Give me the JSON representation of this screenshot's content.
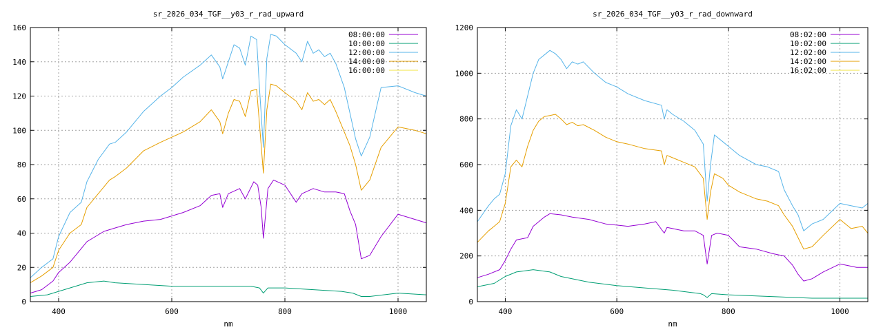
{
  "chart_data": [
    {
      "type": "line",
      "title": "sr_2026_034_TGF__y03_r_rad_upward",
      "xlabel": "nm",
      "ylabel": "",
      "xlim": [
        350,
        1050
      ],
      "ylim": [
        0,
        160
      ],
      "xticks": [
        400,
        600,
        800,
        1000
      ],
      "yticks": [
        0,
        20,
        40,
        60,
        80,
        100,
        120,
        140,
        160
      ],
      "grid": true,
      "legend_position": "top-right",
      "series": [
        {
          "name": "08:00:00",
          "color": "#9400d3",
          "x": [
            350,
            370,
            390,
            400,
            420,
            450,
            480,
            500,
            520,
            550,
            580,
            600,
            620,
            650,
            670,
            685,
            690,
            700,
            720,
            730,
            745,
            752,
            758,
            762,
            770,
            780,
            800,
            820,
            830,
            850,
            870,
            890,
            905,
            915,
            925,
            935,
            950,
            970,
            1000,
            1030,
            1050
          ],
          "y": [
            5,
            7,
            12,
            17,
            23,
            35,
            41,
            43,
            45,
            47,
            48,
            50,
            52,
            56,
            62,
            63,
            55,
            63,
            66,
            60,
            70,
            68,
            55,
            37,
            66,
            71,
            68,
            58,
            63,
            66,
            64,
            64,
            63,
            53,
            45,
            25,
            27,
            38,
            51,
            48,
            46
          ]
        },
        {
          "name": "10:00:00",
          "color": "#009e73",
          "x": [
            350,
            380,
            400,
            420,
            450,
            480,
            500,
            550,
            600,
            650,
            700,
            740,
            755,
            762,
            770,
            800,
            850,
            900,
            920,
            935,
            950,
            1000,
            1050
          ],
          "y": [
            3,
            4,
            6,
            8,
            11,
            12,
            11,
            10,
            9,
            9,
            9,
            9,
            8,
            5,
            8,
            8,
            7,
            6,
            5,
            3,
            3,
            5,
            4
          ]
        },
        {
          "name": "12:00:00",
          "color": "#56b4e9",
          "x": [
            350,
            370,
            390,
            400,
            420,
            440,
            450,
            470,
            490,
            500,
            520,
            550,
            580,
            600,
            620,
            650,
            670,
            685,
            690,
            700,
            710,
            720,
            730,
            740,
            750,
            755,
            762,
            768,
            775,
            785,
            800,
            820,
            830,
            840,
            850,
            860,
            870,
            880,
            890,
            905,
            915,
            925,
            935,
            950,
            970,
            1000,
            1030,
            1050
          ],
          "y": [
            14,
            20,
            25,
            38,
            52,
            58,
            70,
            83,
            92,
            93,
            99,
            111,
            120,
            125,
            131,
            138,
            144,
            137,
            130,
            140,
            150,
            148,
            138,
            155,
            153,
            125,
            90,
            142,
            156,
            155,
            150,
            145,
            140,
            152,
            145,
            147,
            143,
            145,
            139,
            125,
            110,
            95,
            85,
            96,
            125,
            126,
            122,
            120
          ]
        },
        {
          "name": "14:00:00",
          "color": "#e69f00",
          "x": [
            350,
            370,
            390,
            400,
            420,
            440,
            450,
            470,
            490,
            500,
            520,
            550,
            580,
            600,
            620,
            650,
            670,
            685,
            690,
            700,
            710,
            720,
            730,
            740,
            750,
            755,
            762,
            768,
            775,
            785,
            800,
            820,
            830,
            840,
            850,
            860,
            870,
            880,
            890,
            905,
            915,
            925,
            935,
            950,
            970,
            1000,
            1030,
            1050
          ],
          "y": [
            11,
            15,
            20,
            30,
            40,
            45,
            55,
            63,
            71,
            73,
            78,
            88,
            93,
            96,
            99,
            105,
            112,
            105,
            98,
            110,
            118,
            117,
            108,
            123,
            124,
            104,
            75,
            112,
            127,
            126,
            122,
            117,
            112,
            122,
            117,
            118,
            115,
            118,
            111,
            99,
            91,
            80,
            65,
            71,
            90,
            102,
            100,
            98
          ]
        },
        {
          "name": "16:00:00",
          "color": "#f0e442",
          "x": [
            350,
            400,
            450,
            500,
            550,
            600,
            650,
            700,
            750,
            800,
            850,
            900,
            950,
            1000,
            1050
          ],
          "y": [
            0,
            0,
            0,
            0,
            0,
            0,
            0,
            0,
            0,
            0,
            0,
            0,
            0,
            0,
            0
          ]
        }
      ]
    },
    {
      "type": "line",
      "title": "sr_2026_034_TGF__y03_r_rad_downward",
      "xlabel": "nm",
      "ylabel": "",
      "xlim": [
        350,
        1050
      ],
      "ylim": [
        0,
        1200
      ],
      "xticks": [
        400,
        600,
        800,
        1000
      ],
      "yticks": [
        0,
        200,
        400,
        600,
        800,
        1000,
        1200
      ],
      "grid": true,
      "legend_position": "top-right",
      "series": [
        {
          "name": "08:02:00",
          "color": "#9400d3",
          "x": [
            350,
            370,
            390,
            400,
            410,
            420,
            440,
            450,
            470,
            480,
            500,
            520,
            550,
            580,
            600,
            620,
            650,
            670,
            685,
            690,
            700,
            720,
            740,
            755,
            762,
            770,
            780,
            800,
            820,
            850,
            880,
            900,
            915,
            925,
            935,
            950,
            970,
            1000,
            1030,
            1050
          ],
          "y": [
            105,
            120,
            140,
            180,
            230,
            270,
            280,
            330,
            370,
            385,
            380,
            370,
            360,
            340,
            335,
            330,
            340,
            350,
            300,
            325,
            320,
            310,
            310,
            290,
            165,
            290,
            300,
            290,
            240,
            230,
            210,
            200,
            160,
            120,
            90,
            100,
            130,
            165,
            150,
            150
          ]
        },
        {
          "name": "10:02:00",
          "color": "#009e73",
          "x": [
            350,
            380,
            400,
            420,
            450,
            480,
            500,
            550,
            600,
            650,
            700,
            750,
            755,
            762,
            770,
            800,
            850,
            900,
            950,
            1000,
            1050
          ],
          "y": [
            65,
            80,
            110,
            130,
            140,
            130,
            110,
            85,
            70,
            60,
            50,
            35,
            30,
            18,
            35,
            30,
            25,
            20,
            15,
            15,
            15
          ]
        },
        {
          "name": "12:02:00",
          "color": "#56b4e9",
          "x": [
            350,
            370,
            380,
            390,
            400,
            410,
            420,
            430,
            440,
            450,
            460,
            470,
            480,
            490,
            500,
            510,
            520,
            530,
            540,
            560,
            580,
            600,
            620,
            650,
            680,
            685,
            690,
            700,
            720,
            740,
            755,
            762,
            768,
            775,
            790,
            800,
            820,
            850,
            870,
            890,
            900,
            915,
            925,
            935,
            950,
            970,
            1000,
            1020,
            1040,
            1050
          ],
          "y": [
            350,
            420,
            450,
            470,
            560,
            770,
            840,
            800,
            900,
            1000,
            1060,
            1080,
            1100,
            1085,
            1060,
            1020,
            1050,
            1040,
            1050,
            1000,
            960,
            940,
            910,
            880,
            860,
            800,
            840,
            820,
            790,
            750,
            690,
            440,
            600,
            730,
            700,
            680,
            640,
            600,
            590,
            570,
            490,
            420,
            380,
            310,
            340,
            360,
            430,
            420,
            410,
            430
          ]
        },
        {
          "name": "14:02:00",
          "color": "#e69f00",
          "x": [
            350,
            370,
            380,
            390,
            400,
            410,
            420,
            430,
            440,
            450,
            460,
            470,
            480,
            490,
            500,
            510,
            520,
            530,
            540,
            560,
            580,
            600,
            620,
            650,
            680,
            685,
            690,
            700,
            720,
            740,
            755,
            762,
            768,
            775,
            790,
            800,
            820,
            850,
            870,
            890,
            900,
            915,
            925,
            935,
            950,
            970,
            1000,
            1020,
            1040,
            1050
          ],
          "y": [
            260,
            310,
            330,
            350,
            430,
            590,
            620,
            590,
            680,
            750,
            790,
            810,
            815,
            820,
            800,
            775,
            785,
            770,
            775,
            750,
            720,
            700,
            690,
            670,
            660,
            600,
            640,
            630,
            610,
            590,
            540,
            360,
            480,
            560,
            540,
            510,
            480,
            450,
            440,
            420,
            380,
            330,
            280,
            230,
            240,
            290,
            360,
            320,
            330,
            300
          ]
        },
        {
          "name": "16:02:00",
          "color": "#f0e442",
          "x": [
            350,
            400,
            450,
            500,
            550,
            600,
            650,
            700,
            750,
            800,
            850,
            900,
            950,
            1000,
            1050
          ],
          "y": [
            0,
            0,
            0,
            0,
            0,
            0,
            0,
            0,
            0,
            0,
            0,
            0,
            0,
            0,
            0
          ]
        }
      ]
    }
  ]
}
